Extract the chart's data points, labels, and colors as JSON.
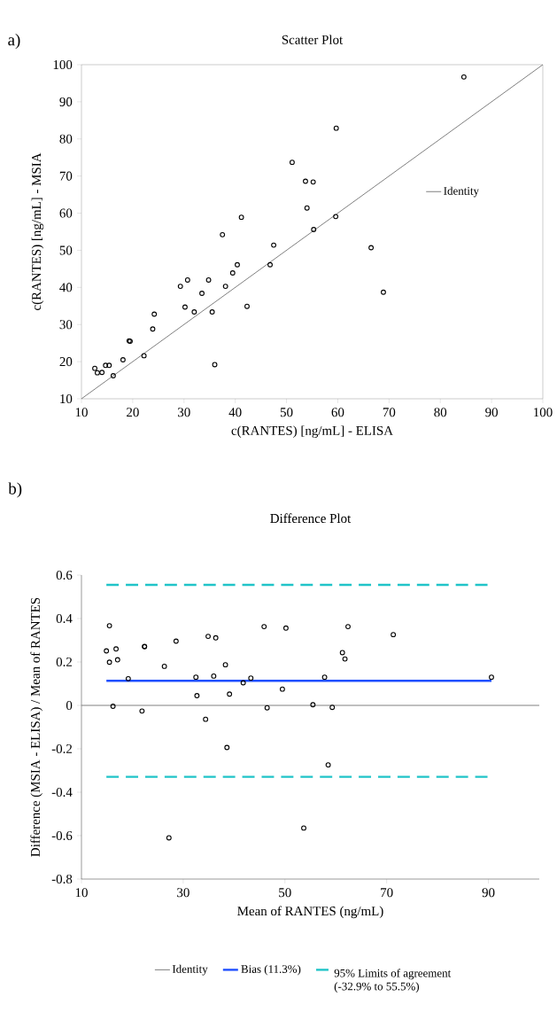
{
  "chart_data": [
    {
      "type": "scatter",
      "title": "Scatter Plot",
      "annotations": [
        "a)"
      ],
      "xlabel": "c(RANTES) [ng/mL] - ELISA",
      "ylabel": "c(RANTES) [ng/mL] - MSIA",
      "xlim": [
        10,
        100
      ],
      "ylim": [
        10,
        100
      ],
      "xticks": [
        10,
        20,
        30,
        40,
        50,
        60,
        70,
        80,
        90,
        100
      ],
      "yticks": [
        10,
        20,
        30,
        40,
        50,
        60,
        70,
        80,
        90,
        100
      ],
      "legend": "right",
      "grid": false,
      "series": [
        {
          "marker": "circle",
          "color": "#000000",
          "x": [
            84.6,
            59.7,
            51.1,
            53.7,
            55.2,
            54.0,
            59.6,
            41.2,
            55.3,
            37.5,
            66.5,
            47.5,
            46.8,
            40.4,
            39.5,
            30.7,
            34.8,
            29.3,
            38.1,
            33.5,
            68.9,
            24.2,
            30.2,
            42.3,
            32.0,
            35.5,
            23.9,
            19.3,
            19.5,
            22.2,
            18.1,
            36.0,
            12.6,
            13.1,
            14.0,
            14.7,
            15.4,
            16.2
          ],
          "values": [
            96.7,
            82.9,
            73.7,
            68.6,
            68.4,
            61.4,
            59.1,
            58.9,
            55.6,
            54.2,
            50.7,
            51.4,
            46.1,
            46.1,
            43.9,
            42.0,
            42.0,
            40.3,
            40.3,
            38.4,
            38.7,
            32.8,
            34.7,
            34.9,
            33.4,
            33.4,
            28.8,
            25.6,
            25.5,
            21.6,
            20.5,
            19.2,
            18.2,
            17.0,
            17.1,
            19.0,
            19.0,
            16.2
          ]
        },
        {
          "type": "line",
          "marker": "none",
          "name": "Identity",
          "color": "#808080",
          "x": [
            10,
            100
          ],
          "values": [
            10,
            100
          ]
        }
      ]
    },
    {
      "type": "scatter",
      "title": "Difference Plot",
      "annotations": [
        "b)"
      ],
      "xlabel": "Mean of RANTES (ng/mL)",
      "ylabel": "Difference (MSIA - ELISA) / Mean of RANTES",
      "xlim": [
        10,
        100
      ],
      "ylim": [
        -0.8,
        0.6
      ],
      "xticks": [
        10,
        30,
        50,
        70,
        90
      ],
      "yticks": [
        -0.8,
        -0.6,
        -0.4,
        -0.2,
        0,
        0.2,
        0.4,
        0.6
      ],
      "legend": "bottom",
      "grid": false,
      "series": [
        {
          "marker": "circle",
          "color": "#000000",
          "x": [
            15.5,
            14.9,
            16.8,
            15.5,
            17.1,
            19.2,
            16.2,
            22.4,
            22.4,
            21.9,
            26.3,
            28.6,
            32.5,
            32.7,
            34.9,
            36.4,
            34.4,
            36.0,
            38.3,
            39.1,
            38.6,
            41.8,
            43.3,
            45.9,
            46.5,
            49.5,
            50.2,
            55.5,
            57.8,
            58.5,
            59.3,
            61.3,
            61.8,
            62.4,
            71.3,
            90.6,
            27.2,
            53.7
          ],
          "values": [
            0.367,
            0.251,
            0.26,
            0.199,
            0.21,
            0.123,
            -0.004,
            0.272,
            0.27,
            -0.026,
            0.18,
            0.296,
            0.13,
            0.045,
            0.318,
            0.311,
            -0.064,
            0.135,
            0.187,
            0.052,
            -0.194,
            0.104,
            0.126,
            0.363,
            -0.011,
            0.075,
            0.356,
            0.003,
            0.13,
            -0.274,
            -0.009,
            0.243,
            0.214,
            0.363,
            0.326,
            0.13,
            -0.61,
            -0.565
          ]
        }
      ],
      "ref_lines": [
        {
          "axis": "y",
          "value": 0,
          "label": "Identity",
          "color": "#808080",
          "line_style": "solid"
        },
        {
          "axis": "y",
          "value": 0.113,
          "label": "Bias (11.3%)",
          "color": "#1f4fff",
          "line_style": "solid"
        },
        {
          "axis": "y",
          "value": -0.329,
          "label": "95% Limits of agreement (-32.9% to 55.5%)",
          "color": "#20c4c8",
          "line_style": "dashed"
        },
        {
          "axis": "y",
          "value": 0.555,
          "color": "#20c4c8",
          "line_style": "dashed"
        }
      ]
    }
  ]
}
